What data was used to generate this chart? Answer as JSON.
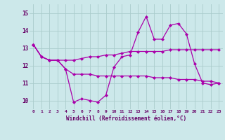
{
  "background_color": "#cce8ea",
  "line_color": "#aa00aa",
  "grid_color": "#aacccc",
  "xlabel": "Windchill (Refroidissement éolien,°C)",
  "xlabel_color": "#660066",
  "tick_color": "#660066",
  "xlim": [
    -0.5,
    23.5
  ],
  "ylim": [
    9.5,
    15.5
  ],
  "yticks": [
    10,
    11,
    12,
    13,
    14,
    15
  ],
  "xticks": [
    0,
    1,
    2,
    3,
    4,
    5,
    6,
    7,
    8,
    9,
    10,
    11,
    12,
    13,
    14,
    15,
    16,
    17,
    18,
    19,
    20,
    21,
    22,
    23
  ],
  "series": [
    [
      13.2,
      12.5,
      12.3,
      12.3,
      11.8,
      9.9,
      10.1,
      10.0,
      9.9,
      10.3,
      11.9,
      12.5,
      12.6,
      13.9,
      14.8,
      13.5,
      13.5,
      14.3,
      14.4,
      13.8,
      12.1,
      11.0,
      10.9,
      11.0
    ],
    [
      13.2,
      12.5,
      12.3,
      12.3,
      12.3,
      12.3,
      12.4,
      12.5,
      12.5,
      12.6,
      12.6,
      12.7,
      12.8,
      12.8,
      12.8,
      12.8,
      12.8,
      12.9,
      12.9,
      12.9,
      12.9,
      12.9,
      12.9,
      12.9
    ],
    [
      13.2,
      12.5,
      12.3,
      12.3,
      11.8,
      11.5,
      11.5,
      11.5,
      11.4,
      11.4,
      11.4,
      11.4,
      11.4,
      11.4,
      11.4,
      11.3,
      11.3,
      11.3,
      11.2,
      11.2,
      11.2,
      11.1,
      11.1,
      11.0
    ]
  ]
}
